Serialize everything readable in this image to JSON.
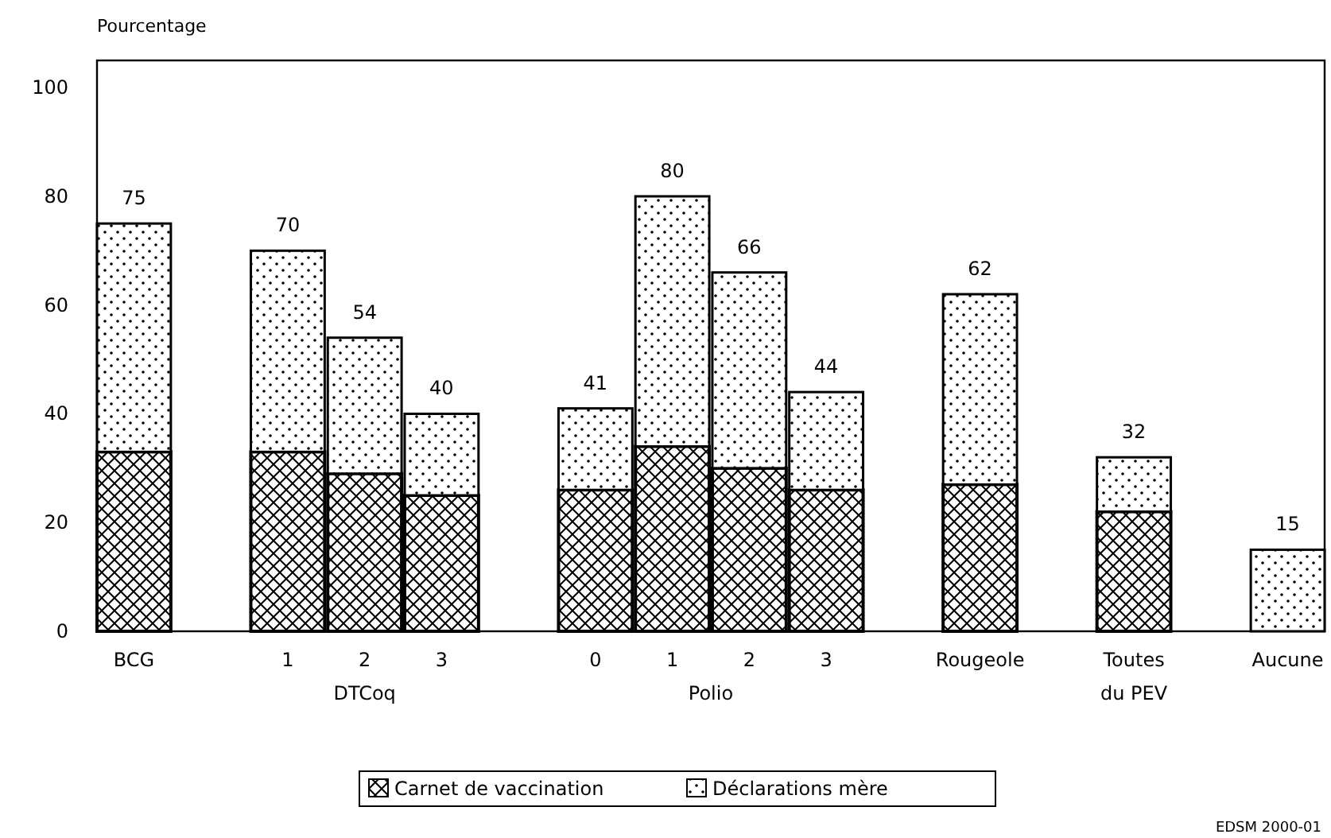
{
  "chart_data": {
    "type": "bar",
    "stacked": true,
    "ylabel": "Pourcentage",
    "categories": [
      "BCG",
      null,
      "1",
      "2",
      "3",
      null,
      "0",
      "1",
      "2",
      "3",
      null,
      "Rougeole",
      null,
      "Toutes du PEV",
      null,
      "Aucune"
    ],
    "series": [
      {
        "name": "Carnet de vaccination",
        "color": "#000000",
        "values": [
          33,
          null,
          33,
          29,
          25,
          null,
          26,
          34,
          30,
          26,
          null,
          27,
          null,
          22,
          null,
          0
        ]
      },
      {
        "name": "Déclarations mère",
        "color": "#000000",
        "values": [
          42,
          null,
          37,
          25,
          15,
          null,
          15,
          46,
          36,
          18,
          null,
          35,
          null,
          10,
          null,
          15
        ]
      }
    ],
    "totals": [
      "75",
      null,
      "70",
      "54",
      "40",
      null,
      "41",
      "80",
      "66",
      "44",
      null,
      "62",
      null,
      "32",
      null,
      "15"
    ],
    "ylim": [
      0,
      105
    ],
    "yticks": [
      0,
      20,
      40,
      60,
      80,
      100
    ],
    "legend": "bottom",
    "annotations": [
      "DTCoq",
      "Polio",
      "EDSM 2000-01"
    ]
  }
}
